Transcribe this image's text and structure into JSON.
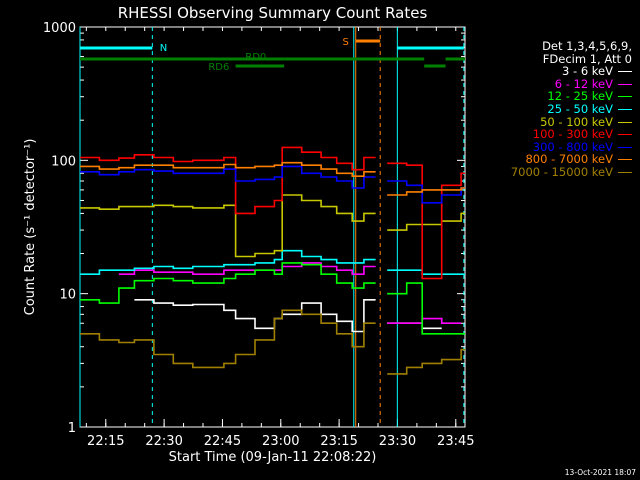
{
  "chart_data": {
    "type": "line",
    "title": "RHESSI Observing Summary Count Rates",
    "xlabel": "Start Time (09-Jan-11 22:08:22)",
    "ylabel": "Count Rate (s⁻¹ detector⁻¹)",
    "yscale": "log",
    "ylim": [
      1,
      1000
    ],
    "xlim_minutes": [
      0,
      99
    ],
    "x_ticks": [
      "22:15",
      "22:30",
      "22:45",
      "23:00",
      "23:15",
      "23:30",
      "23:45"
    ],
    "y_ticks": [
      "1",
      "10",
      "100",
      "1000"
    ],
    "legend_header": [
      "Det 1,3,4,5,6,9,",
      "FDecim 1, Att 0"
    ],
    "flags": [
      {
        "label": "N",
        "color": "#00ffff"
      },
      {
        "label": "S",
        "color": "#ff8000"
      },
      {
        "label": "RD0",
        "color": "#008000"
      },
      {
        "label": "RD6",
        "color": "#008000"
      }
    ],
    "series": [
      {
        "name": "3 - 6 keV",
        "color": "#ffffff",
        "values": [
          null,
          null,
          null,
          9,
          8.5,
          8.2,
          8.3,
          7.5,
          6.5,
          5.5,
          6.5,
          7,
          8.5,
          7,
          6.2,
          5.2,
          9,
          null,
          6,
          6,
          5.5,
          null,
          null
        ]
      },
      {
        "name": "6 - 12 keV",
        "color": "#ff00ff",
        "values": [
          null,
          null,
          14,
          15,
          14.5,
          14.5,
          14,
          15,
          15,
          15,
          15,
          16,
          17,
          16,
          15,
          14,
          16,
          null,
          6,
          6,
          6.5,
          6,
          null
        ]
      },
      {
        "name": "12 - 25 keV",
        "color": "#00ff00",
        "values": [
          9,
          8.5,
          11,
          12.5,
          13,
          12.5,
          12,
          13,
          14,
          15,
          14,
          17,
          16.5,
          14,
          12,
          11,
          12,
          null,
          10,
          12,
          5,
          5,
          5
        ]
      },
      {
        "name": "25 - 50 keV",
        "color": "#00ffff",
        "values": [
          14,
          15,
          15,
          15.5,
          16,
          15.5,
          16,
          16.5,
          16.5,
          17,
          18,
          21,
          19,
          18,
          17,
          17,
          18,
          null,
          15,
          15,
          14,
          14,
          14
        ]
      },
      {
        "name": "50 - 100 keV",
        "color": "#c8c800",
        "values": [
          44,
          43,
          45,
          45,
          46,
          45,
          44,
          46,
          19,
          20,
          21,
          55,
          50,
          45,
          40,
          35,
          40,
          null,
          30,
          33,
          33,
          35,
          40
        ]
      },
      {
        "name": "100 - 300 keV",
        "color": "#ff0000",
        "values": [
          105,
          100,
          104,
          110,
          105,
          98,
          100,
          105,
          40,
          45,
          50,
          125,
          115,
          105,
          95,
          85,
          105,
          null,
          95,
          92,
          13,
          65,
          80
        ]
      },
      {
        "name": "300 - 800 keV",
        "color": "#0000ff",
        "values": [
          82,
          78,
          82,
          85,
          83,
          80,
          80,
          86,
          70,
          72,
          75,
          90,
          80,
          75,
          70,
          62,
          75,
          null,
          70,
          65,
          48,
          55,
          62
        ]
      },
      {
        "name": "800 - 7000 keV",
        "color": "#ff8000",
        "values": [
          90,
          86,
          88,
          92,
          92,
          88,
          88,
          93,
          88,
          90,
          92,
          96,
          92,
          86,
          80,
          76,
          82,
          null,
          55,
          58,
          60,
          60,
          62
        ]
      },
      {
        "name": "7000 - 15000 keV",
        "color": "#a08000",
        "values": [
          5,
          4.5,
          4.3,
          4.5,
          3.5,
          3,
          2.8,
          3,
          3.5,
          4.5,
          6.5,
          7.5,
          7,
          6,
          5,
          4,
          6,
          null,
          2.5,
          2.8,
          3,
          3.2,
          3.8
        ]
      }
    ],
    "x_minutes": [
      0,
      5,
      10,
      14,
      19,
      24,
      29,
      37,
      40,
      45,
      50,
      52,
      57,
      62,
      66,
      70,
      73,
      76,
      79,
      84,
      88,
      93,
      98
    ]
  },
  "footer": "13-Oct-2021 18:07"
}
